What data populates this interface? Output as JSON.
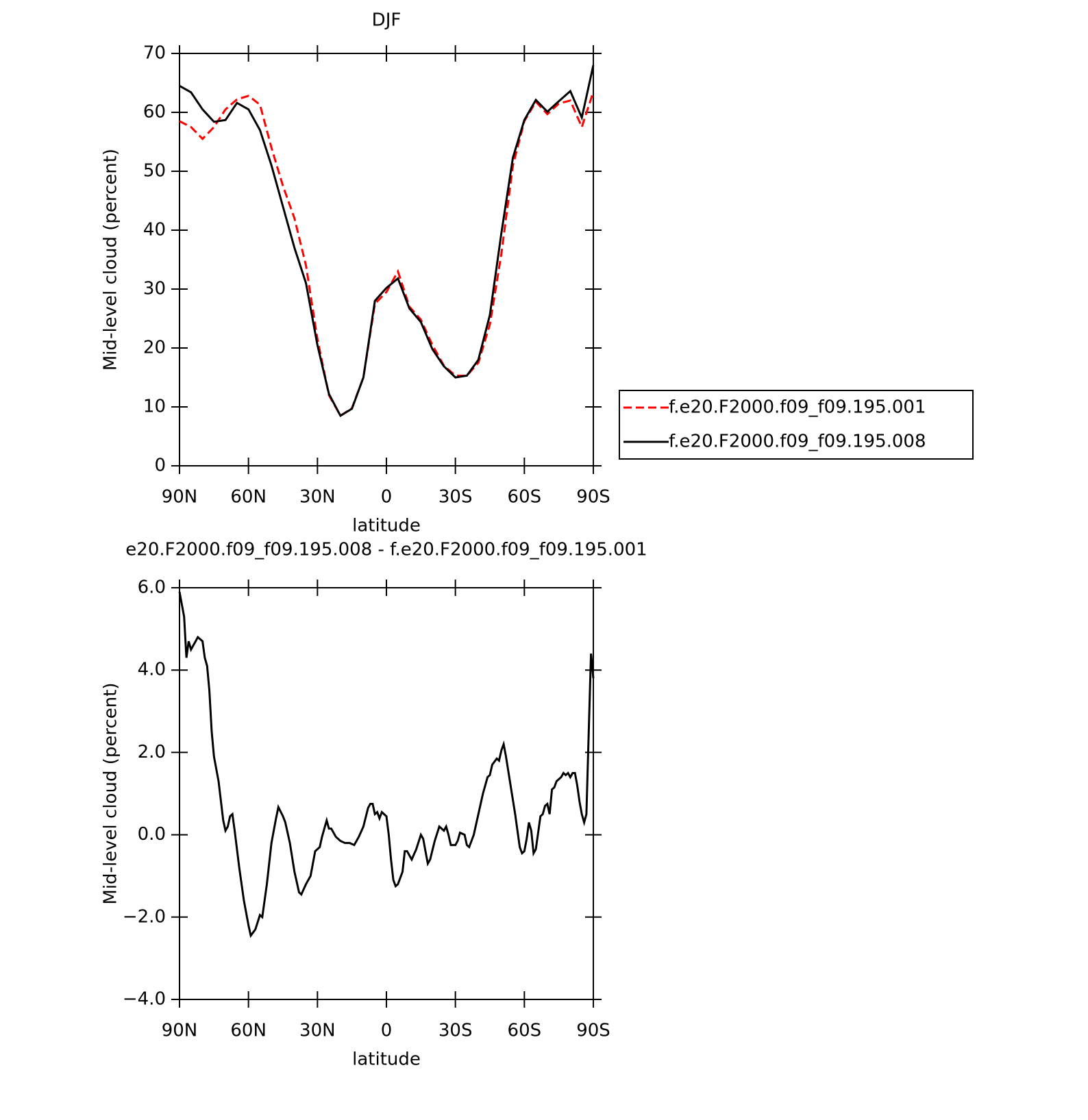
{
  "chart_data": [
    {
      "type": "line",
      "title": "DJF",
      "xlabel": "latitude",
      "ylabel": "Mid-level cloud (percent)",
      "xlim": [
        90,
        -90
      ],
      "xticks": [
        {
          "value": 90,
          "label": "90N"
        },
        {
          "value": 60,
          "label": "60N"
        },
        {
          "value": 30,
          "label": "30N"
        },
        0,
        {
          "value": -30,
          "label": "30S"
        },
        {
          "value": -60,
          "label": "60S"
        },
        {
          "value": -90,
          "label": "90S"
        }
      ],
      "ylim": [
        0,
        70
      ],
      "yticks": [
        0,
        10,
        20,
        30,
        40,
        50,
        60,
        70
      ],
      "x": [
        90,
        85,
        80,
        75,
        70,
        65,
        60,
        55,
        50,
        45,
        40,
        35,
        30,
        25,
        20,
        15,
        10,
        5,
        0,
        -5,
        -10,
        -15,
        -20,
        -25,
        -30,
        -35,
        -40,
        -45,
        -50,
        -55,
        -60,
        -65,
        -70,
        -75,
        -80,
        -85,
        -90
      ],
      "legend": "right",
      "series": [
        {
          "name": "f.e20.F2000.f09_f09.195.001",
          "color": "#ff0000",
          "dash": true,
          "values": [
            58.5,
            57.5,
            55.5,
            57.5,
            60.5,
            62.2,
            62.8,
            61.3,
            54,
            47.5,
            42,
            34,
            21.5,
            12,
            8.5,
            9.8,
            15,
            27.5,
            29.5,
            33,
            27,
            24.8,
            20.5,
            17,
            15.3,
            15.3,
            17.5,
            24,
            36,
            51,
            58.5,
            61.8,
            59.7,
            61.5,
            62,
            57.5,
            63.5
          ]
        },
        {
          "name": "f.e20.F2000.f09_f09.195.008",
          "color": "#000000",
          "dash": false,
          "values": [
            64.5,
            63.4,
            60.5,
            58.4,
            58.7,
            61.6,
            60.5,
            57,
            51,
            44,
            37,
            31,
            20.5,
            12.2,
            8.5,
            9.7,
            15,
            28,
            30.2,
            31.8,
            26.7,
            24.4,
            19.8,
            16.9,
            15,
            15.3,
            18,
            25.6,
            39.5,
            52.3,
            58.7,
            62.1,
            60.1,
            61.9,
            63.6,
            59.1,
            68
          ]
        }
      ]
    },
    {
      "type": "line",
      "title": "e20.F2000.f09_f09.195.008 - f.e20.F2000.f09_f09.195.001",
      "xlabel": "latitude",
      "ylabel": "Mid-level cloud (percent)",
      "xlim": [
        90,
        -90
      ],
      "xticks": [
        {
          "value": 90,
          "label": "90N"
        },
        {
          "value": 60,
          "label": "60N"
        },
        {
          "value": 30,
          "label": "30N"
        },
        0,
        {
          "value": -30,
          "label": "30S"
        },
        {
          "value": -60,
          "label": "60S"
        },
        {
          "value": -90,
          "label": "90S"
        }
      ],
      "ylim": [
        -4,
        6
      ],
      "yticks": [
        {
          "value": -4,
          "label": "−4.0"
        },
        {
          "value": -2,
          "label": "−2.0"
        },
        {
          "value": 0,
          "label": "0.0"
        },
        {
          "value": 2,
          "label": "2.0"
        },
        {
          "value": 4,
          "label": "4.0"
        },
        {
          "value": 6,
          "label": "6.0"
        }
      ],
      "x": [
        90,
        88,
        87,
        86,
        85,
        83,
        82,
        80,
        79,
        78,
        77,
        76,
        75,
        73,
        71,
        70,
        69,
        68,
        67,
        66,
        64,
        62,
        60,
        59,
        57,
        55,
        54,
        52,
        50,
        48,
        47,
        45,
        44,
        42,
        40,
        38,
        37,
        35,
        33,
        31,
        29,
        28,
        26,
        25,
        24,
        22,
        20,
        18,
        16,
        14,
        12,
        10,
        8,
        7,
        6,
        5,
        4,
        3,
        2,
        0,
        -1,
        -2,
        -3,
        -4,
        -5,
        -7,
        -8,
        -9,
        -11,
        -13,
        -15,
        -16,
        -17,
        -18,
        -19,
        -21,
        -23,
        -25,
        -26,
        -27,
        -28,
        -30,
        -31,
        -32,
        -34,
        -35,
        -36,
        -38,
        -40,
        -42,
        -44,
        -45,
        -46,
        -48,
        -49,
        -50,
        -51,
        -52,
        -54,
        -56,
        -58,
        -59,
        -60,
        -61,
        -62,
        -63,
        -64,
        -65,
        -67,
        -68,
        -69,
        -70,
        -71,
        -72,
        -73,
        -74,
        -76,
        -77,
        -78,
        -79,
        -80,
        -81,
        -82,
        -83,
        -84,
        -85,
        -86,
        -87,
        -88,
        -89,
        -90
      ],
      "series": [
        {
          "color": "#000000",
          "dash": false,
          "values": [
            5.9,
            5.3,
            4.3,
            4.7,
            4.5,
            4.7,
            4.8,
            4.7,
            4.3,
            4.1,
            3.5,
            2.5,
            1.9,
            1.3,
            0.35,
            0.1,
            0.2,
            0.45,
            0.5,
            0.1,
            -0.8,
            -1.6,
            -2.2,
            -2.45,
            -2.3,
            -1.95,
            -2.0,
            -1.2,
            -0.2,
            0.4,
            0.67,
            0.45,
            0.3,
            -0.2,
            -0.9,
            -1.4,
            -1.45,
            -1.2,
            -1.0,
            -0.4,
            -0.3,
            -0.05,
            0.35,
            0.15,
            0.15,
            -0.05,
            -0.15,
            -0.2,
            -0.2,
            -0.25,
            -0.05,
            0.2,
            0.65,
            0.75,
            0.75,
            0.5,
            0.55,
            0.4,
            0.55,
            0.45,
            0.0,
            -0.6,
            -1.1,
            -1.25,
            -1.2,
            -0.9,
            -0.4,
            -0.4,
            -0.6,
            -0.35,
            0.0,
            -0.1,
            -0.4,
            -0.7,
            -0.6,
            -0.15,
            0.2,
            0.1,
            0.2,
            0.0,
            -0.25,
            -0.25,
            -0.15,
            0.05,
            0.0,
            -0.25,
            -0.3,
            0.0,
            0.5,
            1.0,
            1.4,
            1.45,
            1.7,
            1.85,
            1.8,
            2.05,
            2.2,
            1.9,
            1.2,
            0.5,
            -0.3,
            -0.45,
            -0.4,
            -0.1,
            0.3,
            0.1,
            -0.45,
            -0.35,
            0.45,
            0.5,
            0.7,
            0.75,
            0.5,
            1.1,
            1.15,
            1.3,
            1.4,
            1.5,
            1.45,
            1.5,
            1.4,
            1.5,
            1.5,
            1.2,
            0.8,
            0.5,
            0.3,
            0.5,
            2.5,
            4.4,
            3.8
          ]
        }
      ]
    }
  ]
}
